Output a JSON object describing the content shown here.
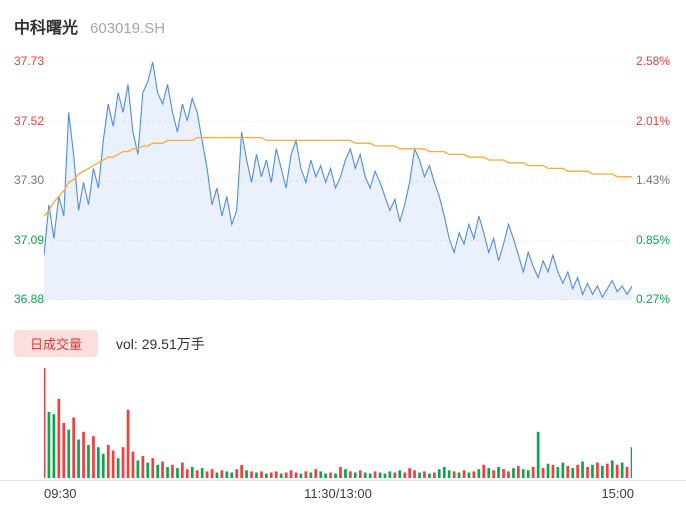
{
  "header": {
    "title": "中科曙光",
    "code": "603019.SH"
  },
  "volume_header": {
    "badge": "日成交量",
    "vol_label": "vol: 29.51万手"
  },
  "colors": {
    "up": "#f43d3d",
    "down": "#0aa64e",
    "neutral": "#757575",
    "price_line": "#4f8bea",
    "price_fill": "rgba(79,139,234,0.12)",
    "avg_line": "#f6ab3e",
    "grid": "#f0f0f0",
    "badge_bg": "#fbdede",
    "badge_text": "#e23b3b"
  },
  "chart_data": {
    "type": "line",
    "title": "中科曙光 603019.SH 分时走势",
    "x_ticks": [
      "09:30",
      "11:30/13:00",
      "15:00"
    ],
    "y_ticks_price": [
      {
        "text": "37.73",
        "tone": "up"
      },
      {
        "text": "37.52",
        "tone": "up"
      },
      {
        "text": "37.30",
        "tone": "neutral"
      },
      {
        "text": "37.09",
        "tone": "down"
      },
      {
        "text": "36.88",
        "tone": "down"
      }
    ],
    "y_ticks_pct": [
      {
        "text": "2.58%",
        "tone": "up"
      },
      {
        "text": "2.01%",
        "tone": "up"
      },
      {
        "text": "1.43%",
        "tone": "neutral"
      },
      {
        "text": "0.85%",
        "tone": "down"
      },
      {
        "text": "0.27%",
        "tone": "down"
      }
    ],
    "ylim": [
      36.88,
      37.73
    ],
    "legend_position": "none",
    "grid": "dashed-horizontal",
    "series": [
      {
        "name": "price",
        "color": "#4f8bea",
        "values": [
          37.04,
          37.22,
          37.1,
          37.25,
          37.18,
          37.55,
          37.4,
          37.2,
          37.3,
          37.22,
          37.35,
          37.28,
          37.45,
          37.58,
          37.5,
          37.62,
          37.55,
          37.65,
          37.48,
          37.4,
          37.62,
          37.66,
          37.73,
          37.62,
          37.58,
          37.65,
          37.55,
          37.48,
          37.58,
          37.52,
          37.6,
          37.55,
          37.45,
          37.35,
          37.22,
          37.28,
          37.18,
          37.25,
          37.15,
          37.2,
          37.48,
          37.38,
          37.3,
          37.4,
          37.32,
          37.38,
          37.3,
          37.42,
          37.35,
          37.28,
          37.4,
          37.45,
          37.35,
          37.3,
          37.38,
          37.32,
          37.36,
          37.3,
          37.35,
          37.28,
          37.32,
          37.38,
          37.42,
          37.35,
          37.4,
          37.32,
          37.28,
          37.34,
          37.3,
          37.25,
          37.2,
          37.24,
          37.16,
          37.22,
          37.3,
          37.42,
          37.38,
          37.32,
          37.36,
          37.3,
          37.25,
          37.18,
          37.1,
          37.05,
          37.12,
          37.08,
          37.15,
          37.1,
          37.18,
          37.12,
          37.05,
          37.1,
          37.02,
          37.08,
          37.15,
          37.1,
          37.04,
          36.98,
          37.05,
          37.0,
          36.96,
          37.02,
          36.98,
          37.04,
          36.98,
          36.94,
          36.98,
          36.92,
          36.96,
          36.9,
          36.94,
          36.9,
          36.93,
          36.89,
          36.92,
          36.95,
          36.91,
          36.93,
          36.9,
          36.93
        ]
      },
      {
        "name": "avg",
        "color": "#f6ab3e",
        "values": [
          37.18,
          37.2,
          37.23,
          37.25,
          37.27,
          37.3,
          37.31,
          37.33,
          37.34,
          37.35,
          37.36,
          37.37,
          37.38,
          37.39,
          37.39,
          37.4,
          37.41,
          37.41,
          37.42,
          37.42,
          37.43,
          37.43,
          37.44,
          37.44,
          37.44,
          37.45,
          37.45,
          37.45,
          37.45,
          37.45,
          37.45,
          37.46,
          37.46,
          37.46,
          37.46,
          37.46,
          37.46,
          37.46,
          37.46,
          37.46,
          37.46,
          37.46,
          37.46,
          37.46,
          37.46,
          37.45,
          37.45,
          37.45,
          37.45,
          37.45,
          37.45,
          37.45,
          37.45,
          37.45,
          37.45,
          37.45,
          37.45,
          37.45,
          37.45,
          37.45,
          37.45,
          37.45,
          37.45,
          37.44,
          37.44,
          37.44,
          37.44,
          37.43,
          37.43,
          37.43,
          37.43,
          37.43,
          37.42,
          37.42,
          37.42,
          37.42,
          37.42,
          37.42,
          37.41,
          37.41,
          37.41,
          37.41,
          37.4,
          37.4,
          37.4,
          37.4,
          37.39,
          37.39,
          37.39,
          37.39,
          37.38,
          37.38,
          37.38,
          37.38,
          37.37,
          37.37,
          37.37,
          37.37,
          37.36,
          37.36,
          37.36,
          37.36,
          37.35,
          37.35,
          37.35,
          37.35,
          37.34,
          37.34,
          37.34,
          37.34,
          37.34,
          37.33,
          37.33,
          37.33,
          37.33,
          37.33,
          37.32,
          37.32,
          37.32,
          37.32
        ]
      }
    ],
    "volume": {
      "unit": "万手",
      "heights": [
        1.0,
        0.6,
        0.58,
        0.72,
        0.5,
        0.44,
        0.55,
        0.35,
        0.42,
        0.3,
        0.38,
        0.28,
        0.22,
        0.3,
        0.25,
        0.18,
        0.28,
        0.62,
        0.24,
        0.16,
        0.2,
        0.14,
        0.18,
        0.12,
        0.15,
        0.1,
        0.12,
        0.09,
        0.14,
        0.08,
        0.1,
        0.07,
        0.09,
        0.06,
        0.08,
        0.05,
        0.07,
        0.06,
        0.05,
        0.08,
        0.12,
        0.07,
        0.06,
        0.05,
        0.06,
        0.04,
        0.05,
        0.06,
        0.04,
        0.05,
        0.07,
        0.05,
        0.04,
        0.06,
        0.05,
        0.08,
        0.06,
        0.04,
        0.05,
        0.04,
        0.1,
        0.08,
        0.06,
        0.05,
        0.07,
        0.05,
        0.04,
        0.06,
        0.05,
        0.04,
        0.06,
        0.05,
        0.07,
        0.05,
        0.09,
        0.07,
        0.05,
        0.06,
        0.04,
        0.05,
        0.08,
        0.1,
        0.07,
        0.06,
        0.05,
        0.07,
        0.05,
        0.06,
        0.08,
        0.12,
        0.09,
        0.07,
        0.1,
        0.08,
        0.06,
        0.09,
        0.11,
        0.08,
        0.07,
        0.1,
        0.42,
        0.09,
        0.13,
        0.12,
        0.1,
        0.14,
        0.11,
        0.09,
        0.12,
        0.15,
        0.1,
        0.12,
        0.14,
        0.11,
        0.13,
        0.16,
        0.12,
        0.14,
        0.1,
        0.28
      ],
      "dirs": [
        "rggrrgrgrg",
        "rggrrgrrrg",
        "rgrgrgrgrr",
        "grgrrgrggr",
        "rgrgrgrrgr",
        "rrgrgrggrg",
        "rgrgrggrgg",
        "grgrrrgrgr",
        "gggrgrgrgr",
        "grgrrgrggr",
        "grgrggrgrg",
        "rgrgrgrgrg"
      ]
    }
  }
}
